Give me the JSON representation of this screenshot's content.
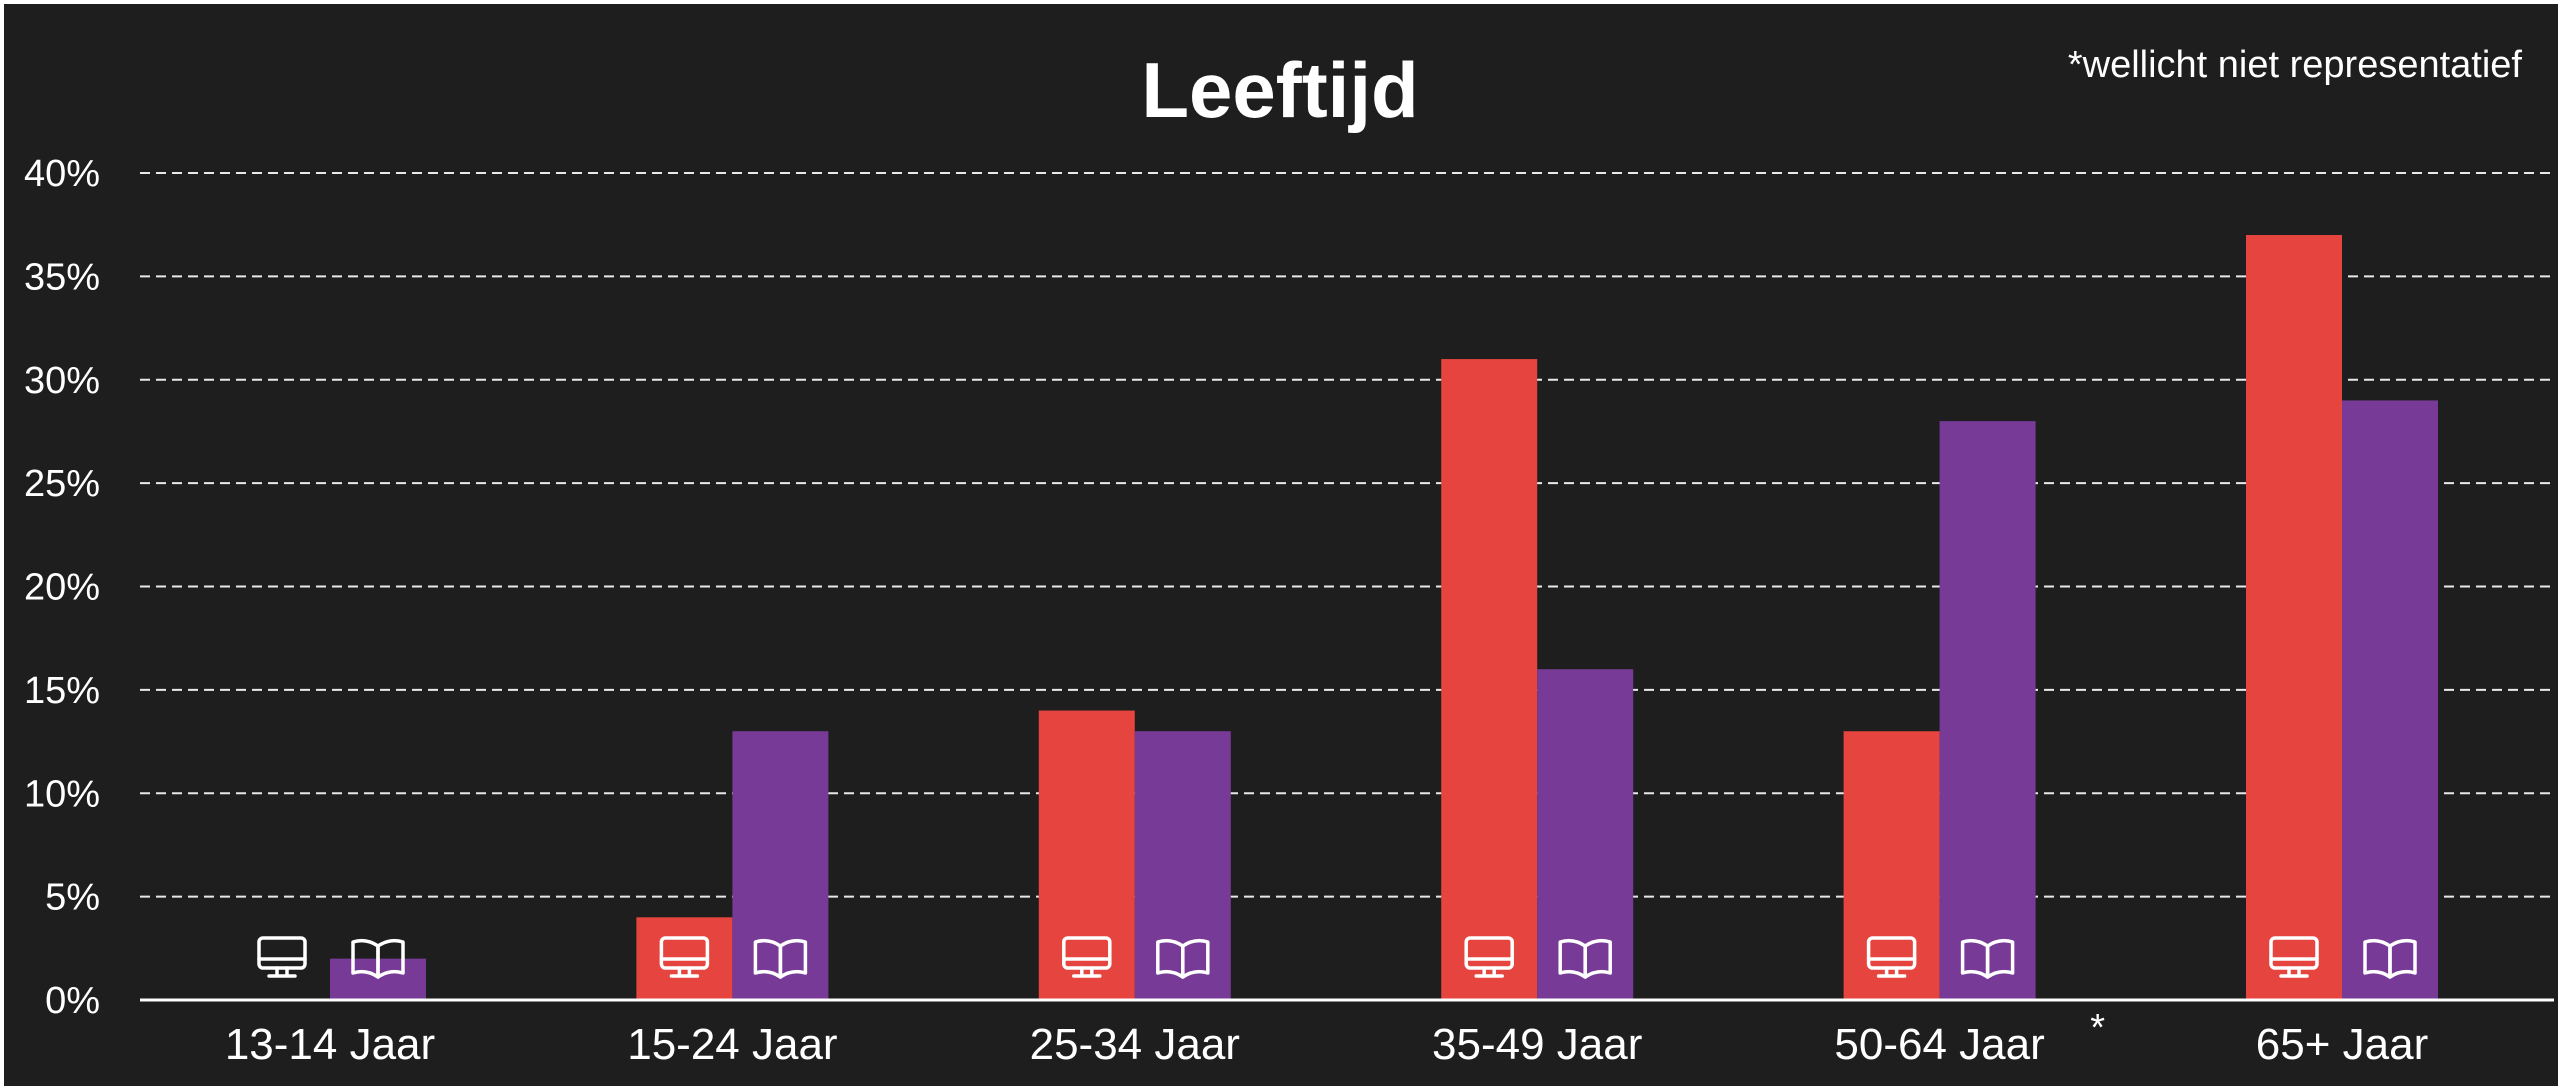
{
  "chart_data": {
    "type": "bar",
    "title": "Leeftijd",
    "note": "*wellicht niet representatief",
    "categories": [
      "13-14 Jaar",
      "15-24 Jaar",
      "25-34 Jaar",
      "35-49 Jaar",
      "50-64 Jaar",
      "65+ Jaar"
    ],
    "category_marks": [
      "",
      "",
      "",
      "",
      "*",
      ""
    ],
    "series": [
      {
        "icon": "monitor-icon",
        "color": "#e5453e",
        "values": [
          0,
          4,
          14,
          31,
          13,
          37
        ]
      },
      {
        "icon": "open-book-icon",
        "color": "#773a96",
        "values": [
          2,
          13,
          13,
          16,
          28,
          29
        ]
      }
    ],
    "y_ticks": [
      "0%",
      "5%",
      "10%",
      "15%",
      "20%",
      "25%",
      "30%",
      "35%",
      "40%"
    ],
    "ylim": [
      0,
      40
    ],
    "y_unit": "%",
    "grid": true,
    "colors": {
      "background": "#1e1e1e",
      "text": "#ffffff"
    }
  }
}
